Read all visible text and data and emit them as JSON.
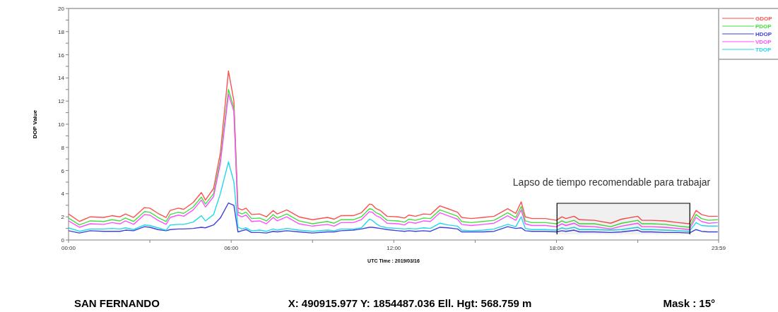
{
  "chart_data": {
    "type": "line",
    "xlabel": "UTC Time : 2019/03/16",
    "ylabel": "DOP Value",
    "legend": "top right",
    "xlim": [
      0,
      23.983
    ],
    "xticks": [
      {
        "value": 0,
        "label": "00:00"
      },
      {
        "value": 3,
        "label": null
      },
      {
        "value": 6,
        "label": "06:00"
      },
      {
        "value": 9,
        "label": null
      },
      {
        "value": 12,
        "label": "12:00"
      },
      {
        "value": 15,
        "label": null
      },
      {
        "value": 18,
        "label": "18:00"
      },
      {
        "value": 21,
        "label": null
      },
      {
        "value": 23.983,
        "label": "23:59"
      }
    ],
    "ylim": [
      0,
      20
    ],
    "yticks": [
      0,
      {
        "value": 1,
        "label": null
      },
      2,
      {
        "value": 3,
        "label": null
      },
      4,
      {
        "value": 5,
        "label": null
      },
      6,
      {
        "value": 7,
        "label": null
      },
      8,
      {
        "value": 9,
        "label": null
      },
      10,
      {
        "value": 11,
        "label": null
      },
      12,
      {
        "value": 13,
        "label": null
      },
      14,
      {
        "value": 15,
        "label": null
      },
      16,
      {
        "value": 17,
        "label": null
      },
      18,
      {
        "value": 19,
        "label": null
      },
      20
    ],
    "x": [
      0,
      0.4,
      0.8,
      1.3,
      1.6,
      1.9,
      2.1,
      2.4,
      2.8,
      3.0,
      3.3,
      3.6,
      3.75,
      4.05,
      4.25,
      4.6,
      4.9,
      5.05,
      5.35,
      5.6,
      5.9,
      6.1,
      6.25,
      6.4,
      6.55,
      6.75,
      7.05,
      7.3,
      7.55,
      7.7,
      8.05,
      8.5,
      9.0,
      9.55,
      9.8,
      10.05,
      10.5,
      10.8,
      11.1,
      11.2,
      11.35,
      11.5,
      11.75,
      12.15,
      12.4,
      12.55,
      12.8,
      13.1,
      13.35,
      13.7,
      14.0,
      14.35,
      14.5,
      14.85,
      15.3,
      15.7,
      16.2,
      16.5,
      16.7,
      16.85,
      17.1,
      17.6,
      18.0,
      18.2,
      18.35,
      18.65,
      18.85,
      19.4,
      20.0,
      20.4,
      21.0,
      21.15,
      21.5,
      22.0,
      22.5,
      22.9,
      23.15,
      23.35,
      23.6,
      23.95
    ],
    "series": [
      {
        "name": "GDOP",
        "color": "#ff5050",
        "values": [
          2.25,
          1.6,
          2.0,
          1.95,
          2.1,
          2.0,
          2.25,
          1.95,
          2.8,
          2.75,
          2.3,
          1.95,
          2.55,
          2.75,
          2.65,
          3.25,
          4.1,
          3.45,
          4.45,
          7.5,
          14.6,
          12.0,
          2.75,
          2.6,
          2.75,
          2.2,
          2.25,
          2.0,
          2.55,
          2.25,
          2.6,
          2.0,
          1.75,
          1.95,
          1.8,
          2.1,
          2.1,
          2.35,
          3.1,
          3.05,
          2.7,
          2.55,
          2.05,
          2.0,
          1.9,
          2.15,
          2.05,
          2.25,
          2.2,
          2.95,
          2.7,
          2.4,
          1.95,
          1.85,
          1.95,
          2.05,
          2.7,
          2.3,
          3.3,
          2.0,
          1.85,
          1.85,
          1.7,
          2.0,
          1.85,
          2.05,
          1.75,
          1.7,
          1.45,
          1.8,
          2.05,
          1.7,
          1.7,
          1.65,
          1.5,
          1.4,
          2.55,
          2.2,
          2.05,
          2.05
        ]
      },
      {
        "name": "PDOP",
        "color": "#40e040",
        "values": [
          1.9,
          1.3,
          1.65,
          1.6,
          1.75,
          1.65,
          1.9,
          1.6,
          2.45,
          2.4,
          1.95,
          1.6,
          2.2,
          2.4,
          2.3,
          2.85,
          3.7,
          3.1,
          4.0,
          6.9,
          13.0,
          11.4,
          2.4,
          2.25,
          2.4,
          1.85,
          1.9,
          1.65,
          2.2,
          1.9,
          2.25,
          1.65,
          1.4,
          1.6,
          1.45,
          1.75,
          1.75,
          2.0,
          2.7,
          2.65,
          2.35,
          2.2,
          1.7,
          1.65,
          1.55,
          1.8,
          1.7,
          1.9,
          1.85,
          2.6,
          2.35,
          2.05,
          1.6,
          1.5,
          1.6,
          1.7,
          2.35,
          1.95,
          2.9,
          1.65,
          1.5,
          1.5,
          1.4,
          1.65,
          1.5,
          1.7,
          1.4,
          1.4,
          1.15,
          1.45,
          1.7,
          1.4,
          1.4,
          1.35,
          1.2,
          1.1,
          2.2,
          1.85,
          1.7,
          1.75
        ]
      },
      {
        "name": "HDOP",
        "color": "#4040e0",
        "values": [
          0.8,
          0.6,
          0.8,
          0.75,
          0.75,
          0.75,
          0.85,
          0.8,
          1.15,
          1.1,
          0.9,
          0.8,
          0.9,
          0.95,
          0.95,
          1.0,
          1.1,
          1.05,
          1.3,
          1.9,
          3.2,
          3.0,
          0.7,
          0.8,
          0.9,
          0.65,
          0.65,
          0.6,
          0.75,
          0.7,
          0.8,
          0.7,
          0.6,
          0.7,
          0.7,
          0.8,
          0.85,
          0.95,
          1.1,
          1.1,
          1.05,
          1.0,
          0.9,
          0.8,
          0.75,
          0.8,
          0.75,
          0.8,
          0.75,
          1.1,
          1.05,
          0.95,
          0.7,
          0.7,
          0.7,
          0.75,
          1.15,
          1.0,
          1.05,
          0.8,
          0.75,
          0.75,
          0.7,
          0.8,
          0.75,
          0.85,
          0.7,
          0.7,
          0.65,
          0.7,
          0.85,
          0.7,
          0.7,
          0.65,
          0.65,
          0.6,
          0.9,
          0.75,
          0.7,
          0.7
        ]
      },
      {
        "name": "VDOP",
        "color": "#ff50ff",
        "values": [
          1.65,
          1.1,
          1.4,
          1.35,
          1.5,
          1.4,
          1.65,
          1.35,
          2.2,
          2.15,
          1.7,
          1.35,
          1.95,
          2.15,
          2.05,
          2.6,
          3.45,
          2.85,
          3.75,
          6.6,
          12.6,
          11.1,
          2.15,
          2.0,
          2.15,
          1.6,
          1.65,
          1.4,
          1.95,
          1.65,
          2.0,
          1.4,
          1.2,
          1.35,
          1.2,
          1.5,
          1.5,
          1.75,
          2.45,
          2.4,
          2.1,
          1.95,
          1.45,
          1.4,
          1.3,
          1.55,
          1.45,
          1.65,
          1.6,
          2.35,
          2.1,
          1.8,
          1.35,
          1.25,
          1.35,
          1.45,
          2.1,
          1.7,
          2.6,
          1.4,
          1.25,
          1.25,
          1.15,
          1.4,
          1.25,
          1.45,
          1.2,
          1.15,
          0.95,
          1.2,
          1.45,
          1.15,
          1.15,
          1.1,
          1.0,
          0.9,
          1.95,
          1.6,
          1.45,
          1.5
        ]
      },
      {
        "name": "TDOP",
        "color": "#20d8e8",
        "values": [
          1.05,
          0.75,
          0.95,
          0.95,
          1.0,
          0.95,
          1.05,
          0.9,
          1.3,
          1.25,
          1.05,
          0.85,
          1.3,
          1.35,
          1.35,
          1.55,
          2.1,
          1.65,
          2.2,
          4.0,
          6.75,
          5.0,
          1.1,
          0.95,
          1.05,
          0.8,
          0.85,
          0.75,
          0.95,
          0.85,
          1.0,
          0.85,
          0.75,
          0.85,
          0.8,
          0.95,
          0.95,
          1.05,
          1.8,
          1.7,
          1.4,
          1.2,
          1.05,
          1.0,
          0.95,
          1.0,
          0.95,
          1.05,
          1.0,
          1.45,
          1.3,
          1.2,
          0.85,
          0.8,
          0.85,
          0.95,
          1.35,
          1.15,
          2.0,
          1.0,
          0.9,
          0.9,
          0.85,
          1.05,
          0.95,
          1.1,
          0.9,
          0.9,
          0.85,
          0.9,
          1.1,
          0.9,
          0.9,
          0.85,
          0.8,
          0.75,
          1.5,
          1.25,
          1.2,
          1.2
        ]
      }
    ],
    "bands": [
      {
        "axis": "x",
        "from": 18.02,
        "to": 22.92,
        "label": "Lapso de tiempo recomendable para trabajar"
      }
    ],
    "annotations": [
      "SAN FERNANDO",
      "X: 490915.977 Y: 1854487.036 Ell. Hgt: 568.759 m",
      "Mask : 15°"
    ]
  }
}
